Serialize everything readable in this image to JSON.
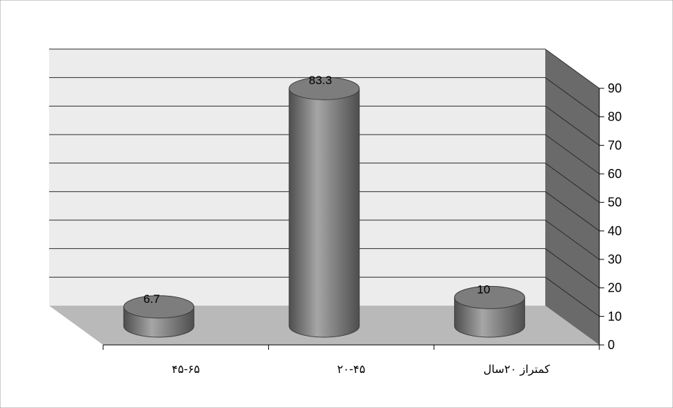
{
  "chart_data": {
    "type": "bar",
    "style": "3d-cylinder",
    "categories": [
      "۴۵-۶۵",
      "۲۰-۴۵",
      "کمتراز ۲۰سال"
    ],
    "values": [
      6.7,
      83.3,
      10
    ],
    "data_labels": [
      "6.7",
      "83.3",
      "10"
    ],
    "title": "",
    "xlabel": "",
    "ylabel": "",
    "ylim": [
      0,
      90
    ],
    "yticks": [
      "0",
      "10",
      "20",
      "30",
      "40",
      "50",
      "60",
      "70",
      "80",
      "90"
    ],
    "y_axis_side": "right",
    "grid": true,
    "legend": "none",
    "colors": {
      "bar": "#7d7d7d",
      "bar_dark": "#4e4e4e",
      "bar_light": "#a6a6a6",
      "wall": "#ececec",
      "side_wall": "#6a6a6a",
      "floor": "#b9b9b9",
      "grid": "#2a2a2a"
    }
  }
}
